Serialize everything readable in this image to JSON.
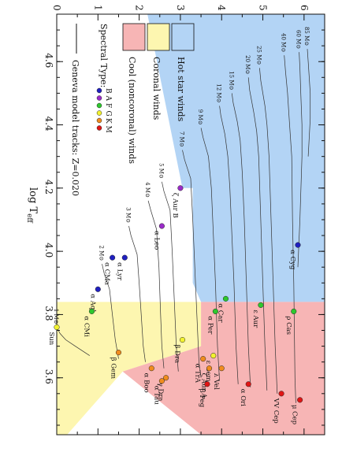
{
  "chart_data": {
    "type": "scatter",
    "xlabel": "log T",
    "xlabel_sub": "eff",
    "ylabel": "",
    "xlim": [
      4.75,
      3.42
    ],
    "ylim": [
      0,
      6.5
    ],
    "x_ticks": [
      "4.6",
      "4.4",
      "4.2",
      "4.0",
      "3.8",
      "3.6"
    ],
    "x_tick_values": [
      4.6,
      4.4,
      4.2,
      4.0,
      3.8,
      3.6
    ],
    "y_ticks": [
      "0",
      "1",
      "2",
      "3",
      "4",
      "5",
      "6"
    ],
    "y_tick_values": [
      0,
      1,
      2,
      3,
      4,
      5,
      6
    ],
    "rotated": true,
    "regions": [
      {
        "name": "Hot star winds",
        "color": "#b3d4f5",
        "polygon": [
          [
            4.75,
            2.2
          ],
          [
            4.2,
            3.05
          ],
          [
            4.2,
            3.3
          ],
          [
            3.9,
            3.3
          ],
          [
            3.84,
            3.5
          ],
          [
            3.84,
            6.5
          ],
          [
            4.75,
            6.5
          ]
        ]
      },
      {
        "name": "Coronal winds",
        "color": "#fdf6b0",
        "polygon": [
          [
            3.84,
            0
          ],
          [
            3.84,
            3.5
          ],
          [
            3.7,
            3.5
          ],
          [
            3.62,
            1.6
          ],
          [
            3.42,
            0.25
          ],
          [
            3.42,
            0
          ]
        ]
      },
      {
        "name": "Cool (noncoronal) winds",
        "color": "#f7b5b5",
        "polygon": [
          [
            3.84,
            3.5
          ],
          [
            3.84,
            6.5
          ],
          [
            3.42,
            6.5
          ],
          [
            3.42,
            3.5
          ],
          [
            3.62,
            1.6
          ],
          [
            3.7,
            3.5
          ]
        ]
      }
    ],
    "legend": {
      "regions_title": "",
      "spectral_title": "Spectral Type:",
      "spectral_types": [
        {
          "label": "B",
          "color": "#2020c0"
        },
        {
          "label": "A",
          "color": "#9a2bc8"
        },
        {
          "label": "F",
          "color": "#2ec82e"
        },
        {
          "label": "G",
          "color": "#f2f230"
        },
        {
          "label": "K",
          "color": "#f08c1e"
        },
        {
          "label": "M",
          "color": "#e01515"
        }
      ],
      "tracks_label": "Geneva model tracks: Z=0.020"
    },
    "tracks": [
      {
        "mass": "85 M⊙",
        "logT": 4.64,
        "logL": 6.08,
        "x": [
          4.64,
          4.6,
          4.5,
          4.42,
          4.3
        ],
        "y": [
          6.08,
          6.1,
          6.15,
          6.15,
          6.1
        ]
      },
      {
        "mass": "60 M⊙",
        "logT": 4.63,
        "logL": 5.88,
        "x": [
          4.63,
          4.58,
          4.5,
          4.4,
          4.3,
          4.1,
          3.95
        ],
        "y": [
          5.88,
          5.9,
          5.92,
          5.95,
          5.95,
          5.9,
          5.85
        ]
      },
      {
        "mass": "40 M⊙",
        "logT": 4.62,
        "logL": 5.52,
        "x": [
          4.62,
          4.57,
          4.5,
          4.4,
          4.3,
          4.1,
          3.9,
          3.6,
          3.52
        ],
        "y": [
          5.52,
          5.55,
          5.6,
          5.65,
          5.7,
          5.72,
          5.75,
          5.78,
          5.8
        ]
      },
      {
        "mass": "25 M⊙",
        "logT": 4.58,
        "logL": 4.92,
        "x": [
          4.58,
          4.54,
          4.46,
          4.4,
          4.3,
          4.1,
          3.9,
          3.7,
          3.55
        ],
        "y": [
          4.92,
          4.95,
          5.05,
          5.1,
          5.15,
          5.2,
          5.25,
          5.3,
          5.35
        ]
      },
      {
        "mass": "20 M⊙",
        "logT": 4.55,
        "logL": 4.65,
        "x": [
          4.55,
          4.51,
          4.44,
          4.38,
          4.3,
          4.1,
          3.9,
          3.7,
          3.56
        ],
        "y": [
          4.65,
          4.68,
          4.78,
          4.85,
          4.9,
          4.95,
          5.0,
          5.05,
          5.1
        ]
      },
      {
        "mass": "15 M⊙",
        "logT": 4.5,
        "logL": 4.25,
        "x": [
          4.5,
          4.47,
          4.41,
          4.35,
          4.25,
          4.1,
          3.9,
          3.7,
          3.57
        ],
        "y": [
          4.25,
          4.28,
          4.38,
          4.45,
          4.5,
          4.55,
          4.6,
          4.65,
          4.7
        ]
      },
      {
        "mass": "12 M⊙",
        "logT": 4.46,
        "logL": 3.95,
        "x": [
          4.46,
          4.43,
          4.37,
          4.3,
          4.2,
          4.05,
          3.9,
          3.7,
          3.58
        ],
        "y": [
          3.95,
          3.98,
          4.08,
          4.15,
          4.2,
          4.25,
          4.3,
          4.35,
          4.4
        ]
      },
      {
        "mass": "9 M⊙",
        "logT": 4.39,
        "logL": 3.5,
        "x": [
          4.39,
          4.36,
          4.3,
          4.2,
          4.05,
          3.9,
          3.7,
          3.59
        ],
        "y": [
          3.5,
          3.55,
          3.68,
          3.75,
          3.8,
          3.85,
          3.9,
          3.95
        ]
      },
      {
        "mass": "7 M⊙",
        "logT": 4.32,
        "logL": 3.05,
        "x": [
          4.32,
          4.29,
          4.23,
          4.1,
          3.95,
          3.8,
          3.65,
          3.6
        ],
        "y": [
          3.05,
          3.1,
          3.25,
          3.3,
          3.35,
          3.4,
          3.45,
          3.5
        ]
      },
      {
        "mass": "5 M⊙",
        "logT": 4.22,
        "logL": 2.55,
        "x": [
          4.22,
          4.19,
          4.13,
          4.0,
          3.85,
          3.7,
          3.62
        ],
        "y": [
          2.55,
          2.6,
          2.75,
          2.8,
          2.85,
          2.9,
          2.95
        ]
      },
      {
        "mass": "4 M⊙",
        "logT": 4.16,
        "logL": 2.22,
        "x": [
          4.16,
          4.13,
          4.07,
          3.95,
          3.8,
          3.7,
          3.63
        ],
        "y": [
          2.22,
          2.28,
          2.42,
          2.48,
          2.52,
          2.55,
          2.6
        ]
      },
      {
        "mass": "3 M⊙",
        "logT": 4.08,
        "logL": 1.75,
        "x": [
          4.08,
          4.05,
          3.99,
          3.9,
          3.8,
          3.7,
          3.65
        ],
        "y": [
          1.75,
          1.8,
          1.95,
          2.0,
          2.05,
          2.1,
          2.15
        ]
      },
      {
        "mass": "2 M⊙",
        "logT": 3.96,
        "logL": 1.1,
        "x": [
          3.96,
          3.93,
          3.88,
          3.8,
          3.72,
          3.66
        ],
        "y": [
          1.1,
          1.15,
          1.28,
          1.35,
          1.42,
          1.5
        ]
      },
      {
        "mass": "1 M⊙",
        "logT": 3.76,
        "logL": 0.0,
        "x": [
          3.76,
          3.74,
          3.72,
          3.7,
          3.67
        ],
        "y": [
          0.0,
          0.08,
          0.22,
          0.45,
          0.8
        ]
      }
    ],
    "stars": [
      {
        "name": "α Cyg",
        "x": 4.02,
        "y": 5.85,
        "type": "B"
      },
      {
        "name": "ζ Aur B",
        "x": 4.2,
        "y": 3.0,
        "type": "A"
      },
      {
        "name": "α Leo",
        "x": 4.08,
        "y": 2.55,
        "type": "A"
      },
      {
        "name": "α CMa",
        "x": 3.98,
        "y": 1.35,
        "type": "B"
      },
      {
        "name": "α Lyr",
        "x": 3.98,
        "y": 1.65,
        "type": "B"
      },
      {
        "name": "α Aql",
        "x": 3.88,
        "y": 1.0,
        "type": "B"
      },
      {
        "name": "α CMi",
        "x": 3.81,
        "y": 0.85,
        "type": "F"
      },
      {
        "name": "Sun",
        "x": 3.76,
        "y": 0.0,
        "type": "G"
      },
      {
        "name": "α Car",
        "x": 3.85,
        "y": 4.1,
        "type": "F"
      },
      {
        "name": "ε Aur",
        "x": 3.83,
        "y": 4.95,
        "type": "F"
      },
      {
        "name": "ρ Cas",
        "x": 3.81,
        "y": 5.75,
        "type": "F"
      },
      {
        "name": "α Per",
        "x": 3.81,
        "y": 3.85,
        "type": "F"
      },
      {
        "name": "β Dra",
        "x": 3.72,
        "y": 3.05,
        "type": "G"
      },
      {
        "name": "ε Gem",
        "x": 3.67,
        "y": 3.8,
        "type": "G"
      },
      {
        "name": "α TrA",
        "x": 3.66,
        "y": 3.55,
        "type": "K"
      },
      {
        "name": "λ Vel",
        "x": 3.63,
        "y": 4.0,
        "type": "K"
      },
      {
        "name": "ζ Aur A",
        "x": 3.63,
        "y": 3.7,
        "type": "K"
      },
      {
        "name": "β Peg",
        "x": 3.58,
        "y": 3.65,
        "type": "M"
      },
      {
        "name": "α Ori",
        "x": 3.58,
        "y": 4.65,
        "type": "M"
      },
      {
        "name": "VV Cep",
        "x": 3.55,
        "y": 5.45,
        "type": "M"
      },
      {
        "name": "μ Cep",
        "x": 3.53,
        "y": 5.9,
        "type": "M"
      },
      {
        "name": "β Gem",
        "x": 3.68,
        "y": 1.5,
        "type": "K"
      },
      {
        "name": "α Boo",
        "x": 3.63,
        "y": 2.3,
        "type": "K"
      },
      {
        "name": "γ Dra",
        "x": 3.6,
        "y": 2.65,
        "type": "K"
      },
      {
        "name": "α Tau",
        "x": 3.59,
        "y": 2.55,
        "type": "K"
      }
    ]
  }
}
